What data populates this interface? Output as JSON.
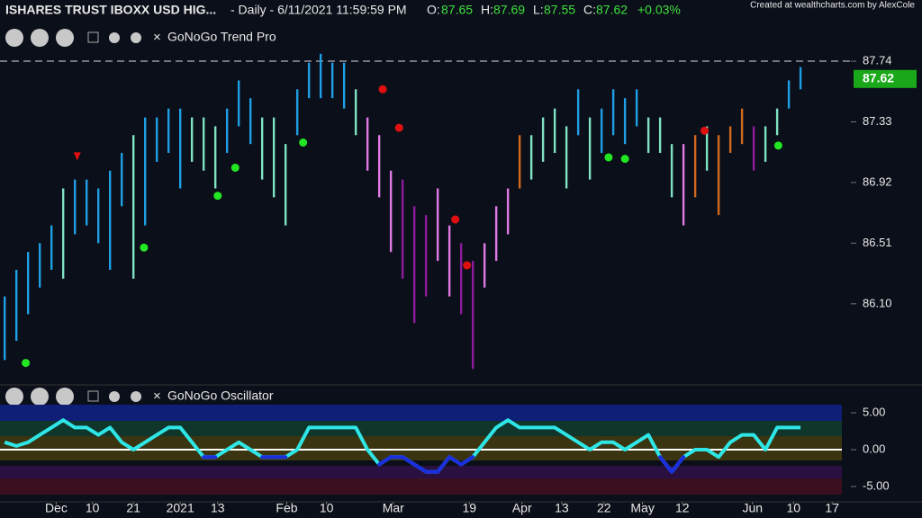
{
  "header": {
    "symbol": "ISHARES TRUST IBOXX USD HIG...",
    "info": "- Daily - 6/11/2021 11:59:59 PM",
    "o_label": "O:",
    "o": "87.65",
    "h_label": "H:",
    "h": "87.69",
    "l_label": "L:",
    "l": "87.55",
    "c_label": "C:",
    "c": "87.62",
    "change": "+0.03%",
    "credit": "Created at wealthcharts.com by AlexCole"
  },
  "chart_data": [
    {
      "type": "range",
      "title": "GoNoGo Trend Pro",
      "high": [
        86.15,
        86.33,
        86.45,
        86.51,
        86.63,
        86.88,
        86.94,
        86.94,
        86.88,
        87.0,
        87.12,
        87.24,
        87.36,
        87.36,
        87.42,
        87.42,
        87.36,
        87.36,
        87.3,
        87.42,
        87.61,
        87.49,
        87.36,
        87.36,
        87.18,
        87.55,
        87.73,
        87.79,
        87.73,
        87.73,
        87.55,
        87.36,
        87.24,
        87.0,
        86.94,
        86.76,
        86.7,
        86.88,
        86.63,
        86.51,
        86.39,
        86.51,
        86.76,
        86.88,
        87.24,
        87.24,
        87.36,
        87.42,
        87.3,
        87.55,
        87.36,
        87.42,
        87.55,
        87.49,
        87.55,
        87.36,
        87.36,
        87.18,
        87.18,
        87.24,
        87.3,
        87.24,
        87.3,
        87.42,
        87.3,
        87.3,
        87.42,
        87.61,
        87.7
      ],
      "low": [
        85.72,
        85.85,
        86.03,
        86.21,
        86.33,
        86.27,
        86.57,
        86.63,
        86.51,
        86.33,
        86.76,
        86.27,
        86.63,
        87.06,
        87.12,
        86.88,
        87.06,
        87.0,
        86.88,
        87.12,
        87.3,
        87.18,
        86.94,
        86.82,
        86.63,
        87.24,
        87.49,
        87.49,
        87.49,
        87.42,
        87.24,
        87.0,
        86.82,
        86.45,
        86.27,
        85.97,
        86.15,
        86.39,
        86.15,
        86.03,
        85.66,
        86.21,
        86.39,
        86.57,
        86.88,
        86.94,
        87.06,
        87.12,
        86.88,
        87.24,
        86.94,
        87.12,
        87.24,
        87.18,
        87.3,
        87.12,
        87.12,
        86.82,
        86.63,
        86.82,
        87.0,
        86.7,
        87.12,
        87.18,
        87.0,
        87.06,
        87.24,
        87.42,
        87.55
      ],
      "colors": [
        "#1e9fe6",
        "#1e9fe6",
        "#1e9fe6",
        "#1e9fe6",
        "#1e9fe6",
        "#7fe3c3",
        "#1e9fe6",
        "#1e9fe6",
        "#1e9fe6",
        "#1e9fe6",
        "#1e9fe6",
        "#7fe3c3",
        "#1e9fe6",
        "#1e9fe6",
        "#1e9fe6",
        "#1e9fe6",
        "#7fe3c3",
        "#7fe3c3",
        "#7fe3c3",
        "#1e9fe6",
        "#1e9fe6",
        "#1e9fe6",
        "#7fe3c3",
        "#7fe3c3",
        "#7fe3c3",
        "#1e9fe6",
        "#1e9fe6",
        "#1e9fe6",
        "#1e9fe6",
        "#1e9fe6",
        "#7fe3c3",
        "#e07ae6",
        "#e07ae6",
        "#e07ae6",
        "#8e1a9c",
        "#8e1a9c",
        "#8e1a9c",
        "#e07ae6",
        "#e07ae6",
        "#8e1a9c",
        "#8e1a9c",
        "#e07ae6",
        "#e07ae6",
        "#e07ae6",
        "#d2691e",
        "#7fe3c3",
        "#7fe3c3",
        "#7fe3c3",
        "#7fe3c3",
        "#1e9fe6",
        "#7fe3c3",
        "#1e9fe6",
        "#1e9fe6",
        "#1e9fe6",
        "#1e9fe6",
        "#7fe3c3",
        "#7fe3c3",
        "#7fe3c3",
        "#e07ae6",
        "#d2691e",
        "#7fe3c3",
        "#d2691e",
        "#d2691e",
        "#d2691e",
        "#8e1a9c",
        "#7fe3c3",
        "#7fe3c3",
        "#1e9fe6",
        "#1e9fe6"
      ],
      "markers": {
        "x": [
          1.8,
          6.2,
          11.9,
          18.2,
          19.7,
          25.5,
          32.3,
          33.7,
          38.5,
          39.5,
          51.6,
          53.0,
          59.8,
          66.1
        ],
        "values": [
          85.7,
          87.1,
          86.48,
          86.83,
          87.02,
          87.19,
          87.55,
          87.29,
          86.67,
          86.36,
          87.09,
          87.08,
          87.27,
          87.17
        ],
        "colors": [
          "#22e622",
          "#e01010",
          "#22e622",
          "#22e622",
          "#22e622",
          "#22e622",
          "#e01010",
          "#e01010",
          "#e01010",
          "#e01010",
          "#22e622",
          "#22e622",
          "#e01010",
          "#22e622"
        ],
        "shapes": [
          "circle",
          "triangle",
          "circle",
          "circle",
          "circle",
          "circle",
          "circle",
          "circle",
          "circle",
          "circle",
          "circle",
          "circle",
          "circle",
          "circle"
        ]
      },
      "xlim": [
        -0.4,
        72.3
      ],
      "ylim": [
        85.57,
        88.02
      ],
      "yticks": [
        87.74,
        87.33,
        86.92,
        86.51,
        {
          "value": 86.1,
          "label": "86.10"
        }
      ],
      "reference_line": 87.74,
      "last_price": 87.62,
      "last_price_color": "#1aa81a"
    },
    {
      "type": "line",
      "title": "GoNoGo Oscillator",
      "values": [
        1,
        0.5,
        1,
        2,
        3,
        4,
        3,
        3,
        2,
        3,
        1,
        0,
        1,
        2,
        3,
        3,
        1,
        -1,
        -1,
        0,
        1,
        0,
        -1,
        -1,
        -1,
        0,
        3,
        3,
        3,
        3,
        3,
        0,
        -2,
        -1,
        -1,
        -2,
        -3,
        -3,
        -1,
        -2,
        -1,
        1,
        3,
        4,
        3,
        3,
        3,
        3,
        2,
        1,
        0,
        1,
        1,
        0,
        1,
        2,
        -1,
        -3,
        -1,
        0,
        0,
        -1,
        1,
        2,
        2,
        0,
        3,
        3,
        3
      ],
      "color": "#2ee6e6",
      "negative_color": "#1b2fe0",
      "xlim": [
        -0.4,
        72.3
      ],
      "ylim": [
        -6.1,
        6.1
      ],
      "yticks": [
        {
          "value": 5,
          "label": "5.00"
        },
        {
          "value": 0,
          "label": "0.00"
        },
        {
          "value": -5,
          "label": "-5.00"
        }
      ],
      "xticks": [
        {
          "value": 4.4,
          "label": "Dec"
        },
        {
          "value": 7.5,
          "label": "10"
        },
        {
          "value": 11.0,
          "label": "21"
        },
        {
          "value": 15.0,
          "label": "2021"
        },
        {
          "value": 18.2,
          "label": "13"
        },
        {
          "value": 24.1,
          "label": "Feb"
        },
        {
          "value": 27.5,
          "label": "10"
        },
        {
          "value": 33.2,
          "label": "Mar"
        },
        {
          "value": 39.7,
          "label": "19"
        },
        {
          "value": 44.2,
          "label": "Apr"
        },
        {
          "value": 47.6,
          "label": "13"
        },
        {
          "value": 51.2,
          "label": "22"
        },
        {
          "value": 54.5,
          "label": "May"
        },
        {
          "value": 57.9,
          "label": "12"
        },
        {
          "value": 63.9,
          "label": "Jun"
        },
        {
          "value": 67.4,
          "label": "10"
        },
        {
          "value": 70.7,
          "label": "17"
        }
      ]
    }
  ]
}
